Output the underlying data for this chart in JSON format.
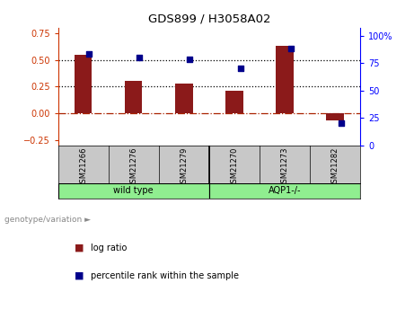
{
  "title": "GDS899 / H3058A02",
  "samples": [
    "GSM21266",
    "GSM21276",
    "GSM21279",
    "GSM21270",
    "GSM21273",
    "GSM21282"
  ],
  "log_ratio": [
    0.55,
    0.3,
    0.28,
    0.21,
    0.63,
    -0.07
  ],
  "percentile_rank": [
    83,
    80,
    78,
    70,
    88,
    20
  ],
  "bar_color": "#8B1A1A",
  "dot_color": "#00008B",
  "left_ylim": [
    -0.3,
    0.8
  ],
  "right_ylim": [
    0,
    107
  ],
  "left_yticks": [
    -0.25,
    0,
    0.25,
    0.5,
    0.75
  ],
  "right_yticks": [
    0,
    25,
    50,
    75,
    100
  ],
  "hline_y": [
    0.25,
    0.5
  ],
  "green_color": "#90EE90",
  "grey_color": "#C8C8C8",
  "legend_items": [
    "log ratio",
    "percentile rank within the sample"
  ],
  "group_labels": [
    "wild type",
    "AQP1-/-"
  ],
  "genotype_label": "genotype/variation ►"
}
